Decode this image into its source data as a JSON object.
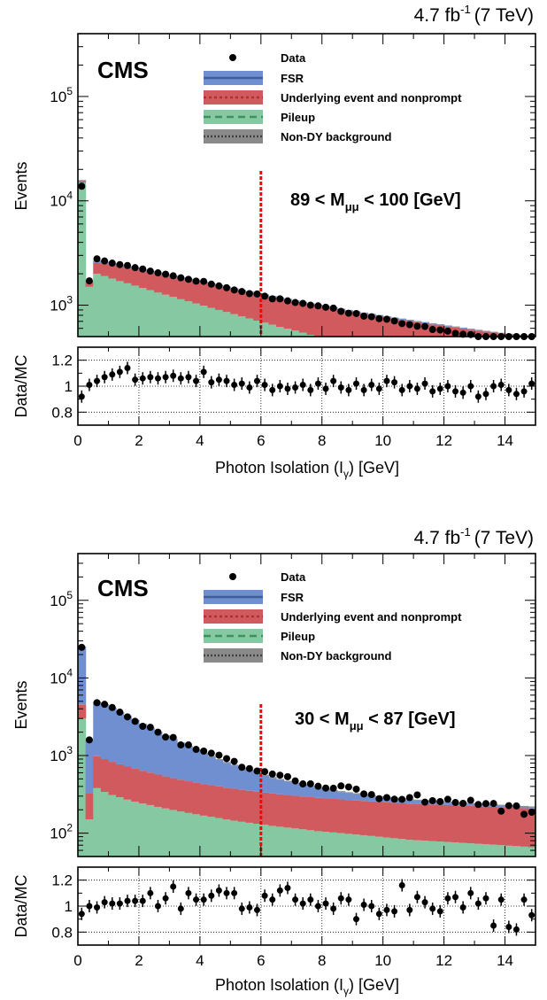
{
  "colors": {
    "fsr": "#6f8fd0",
    "ue": "#d05a5e",
    "pileup": "#86c8a1",
    "nondy": "#8a8a8a",
    "cut_line": "#ff0000",
    "data": "#000000"
  },
  "legend": {
    "data": "Data",
    "fsr": "FSR",
    "ue": "Underlying event and nonprompt",
    "pileup": "Pileup",
    "nondy": "Non-DY background"
  },
  "lumi_label": "4.7 fb",
  "lumi_exp": "-1",
  "energy_label": "(7 TeV)",
  "experiment": "CMS",
  "axes": {
    "ylabel_main": "Events",
    "ylabel_ratio": "Data/MC",
    "xlabel_main": "Photon Isolation (I",
    "xlabel_sub": "γ",
    "xlabel_unit": ") [GeV]",
    "ratio_ticks": [
      "1.2",
      "1",
      "0.8"
    ],
    "x_ticks": [
      "0",
      "2",
      "4",
      "6",
      "8",
      "10",
      "12",
      "14"
    ],
    "y_base": "10",
    "y_exponents": [
      "2",
      "3",
      "4",
      "5"
    ]
  },
  "chart_data": [
    {
      "type": "histogram-stacked",
      "mass_pre": "89 < M",
      "mass_sub": "μμ",
      "mass_post": " < 100 [GeV]",
      "xlim": [
        0,
        15
      ],
      "ylim": [
        500,
        400000
      ],
      "ylog": true,
      "ratio_ylim": [
        0.7,
        1.3
      ],
      "cut_x": 6,
      "bin_width": 0.25,
      "series": {
        "pileup": [
          15000,
          1500,
          2000,
          1900,
          1800,
          1700,
          1620,
          1540,
          1460,
          1390,
          1320,
          1260,
          1200,
          1140,
          1090,
          1040,
          990,
          940,
          900,
          860,
          820,
          780,
          745,
          710,
          680,
          650,
          620,
          595,
          570,
          545,
          520,
          498,
          477,
          457,
          438,
          420,
          403,
          387,
          372,
          358,
          344,
          331,
          319,
          307,
          296,
          286,
          276,
          267,
          258,
          250,
          242,
          234,
          227,
          220,
          213,
          207,
          201,
          195,
          189,
          184
        ],
        "ue": [
          500,
          150,
          550,
          600,
          620,
          640,
          650,
          660,
          660,
          660,
          660,
          655,
          650,
          645,
          640,
          635,
          625,
          615,
          605,
          595,
          585,
          575,
          565,
          555,
          545,
          535,
          525,
          515,
          505,
          495,
          487,
          479,
          471,
          463,
          456,
          449,
          442,
          435,
          428,
          421,
          414,
          408,
          402,
          396,
          390,
          384,
          378,
          372,
          366,
          360,
          354,
          348,
          343,
          338,
          333,
          328,
          323,
          318,
          313,
          308
        ],
        "fsr": [
          300,
          50,
          110,
          100,
          90,
          85,
          80,
          76,
          72,
          68,
          64,
          61,
          58,
          55,
          52,
          50,
          48,
          46,
          44,
          42,
          40,
          38,
          37,
          36,
          35,
          34,
          33,
          32,
          31,
          30,
          29,
          28,
          27,
          26,
          25,
          24,
          23,
          22,
          21,
          20,
          19,
          18,
          17,
          16,
          15,
          14,
          13,
          12,
          11,
          10,
          9,
          8,
          7,
          6,
          5,
          4,
          3,
          2,
          2,
          1
        ],
        "nondy": [
          30,
          5,
          15,
          15,
          14,
          14,
          13,
          13,
          12,
          12,
          12,
          11,
          11,
          11,
          10,
          10,
          10,
          10,
          9,
          9,
          9,
          9,
          9,
          8,
          8,
          8,
          8,
          8,
          7,
          7,
          7,
          7,
          7,
          7,
          7,
          6,
          6,
          6,
          6,
          6,
          6,
          6,
          6,
          6,
          5,
          5,
          5,
          5,
          5,
          5,
          5,
          5,
          5,
          5,
          5,
          5,
          5,
          5,
          5,
          5
        ],
        "ratio": [
          0.92,
          1.01,
          1.04,
          1.07,
          1.09,
          1.11,
          1.14,
          1.05,
          1.06,
          1.07,
          1.06,
          1.07,
          1.08,
          1.06,
          1.07,
          1.04,
          1.11,
          1.03,
          1.05,
          1.04,
          1.01,
          1.02,
          0.99,
          1.04,
          1.01,
          0.97,
          1.0,
          0.98,
          0.99,
          1.01,
          0.97,
          1.02,
          0.98,
          1.04,
          0.99,
          0.97,
          1.02,
          0.97,
          1.01,
          0.98,
          1.04,
          1.03,
          0.97,
          1.0,
          0.98,
          1.02,
          0.96,
          0.98,
          1.0,
          0.96,
          0.95,
          1.0,
          0.92,
          0.94,
          1.0,
          1.01,
          0.97,
          0.94,
          0.96,
          1.02
        ],
        "data": [
          13800,
          1710,
          2780,
          2650,
          2530,
          2450,
          2400,
          2290,
          2220,
          2120,
          2040,
          1980,
          1910,
          1830,
          1770,
          1700,
          1690,
          1590,
          1530,
          1470,
          1400,
          1350,
          1290,
          1280,
          1220,
          1150,
          1150,
          1100,
          1060,
          1040,
          1000,
          985,
          956,
          937,
          873,
          838,
          832,
          785,
          775,
          743,
          733,
          706,
          666,
          651,
          629,
          625,
          584,
          578,
          564,
          537,
          526,
          523,
          485,
          481,
          473,
          465,
          447,
          427,
          412,
          412
        ]
      }
    },
    {
      "type": "histogram-stacked",
      "mass_pre": "30 < M",
      "mass_sub": "μμ",
      "mass_post": " < 87 [GeV]",
      "xlim": [
        0,
        15
      ],
      "ylim": [
        50,
        400000
      ],
      "ylog": true,
      "ratio_ylim": [
        0.7,
        1.3
      ],
      "cut_x": 6,
      "bin_width": 0.25,
      "series": {
        "pileup": [
          3000,
          150,
          380,
          340,
          310,
          290,
          270,
          255,
          242,
          230,
          218,
          208,
          199,
          190,
          182,
          175,
          168,
          162,
          156,
          150,
          145,
          140,
          136,
          132,
          128,
          124,
          121,
          118,
          115,
          112,
          109,
          106,
          104,
          102,
          100,
          98,
          96,
          94,
          92,
          90,
          88,
          86,
          84,
          82,
          81,
          80,
          79,
          78,
          77,
          76,
          75,
          74,
          73,
          72,
          71,
          70,
          69,
          68,
          67,
          66
        ],
        "ue": [
          1500,
          180,
          600,
          560,
          520,
          480,
          450,
          420,
          395,
          372,
          350,
          330,
          314,
          298,
          284,
          272,
          262,
          252,
          244,
          236,
          229,
          222,
          216,
          210,
          205,
          200,
          196,
          192,
          188,
          185,
          182,
          179,
          176,
          174,
          172,
          170,
          168,
          166,
          164,
          162,
          161,
          160,
          159,
          158,
          157,
          156,
          155,
          154,
          153,
          152,
          151,
          150,
          149,
          148,
          147,
          146,
          145,
          144,
          143,
          142
        ],
        "fsr": [
          20000,
          1200,
          3800,
          3600,
          3200,
          2800,
          2450,
          2150,
          1880,
          1640,
          1430,
          1250,
          1090,
          950,
          830,
          720,
          630,
          550,
          480,
          420,
          368,
          322,
          282,
          248,
          218,
          192,
          170,
          150,
          133,
          118,
          105,
          94,
          84,
          75,
          67,
          60,
          54,
          49,
          44,
          40,
          36,
          33,
          30,
          27,
          25,
          23,
          21,
          19,
          17,
          16,
          15,
          14,
          13,
          12,
          11,
          10,
          9,
          8,
          8,
          7
        ],
        "nondy": [
          800,
          60,
          100,
          90,
          80,
          72,
          65,
          58,
          52,
          47,
          42,
          38,
          34,
          31,
          28,
          26,
          24,
          22,
          20,
          19,
          18,
          17,
          16,
          15,
          14,
          13,
          12,
          12,
          11,
          11,
          10,
          10,
          10,
          9,
          9,
          9,
          9,
          8,
          8,
          8,
          8,
          8,
          7,
          7,
          7,
          7,
          7,
          7,
          7,
          6,
          6,
          6,
          6,
          6,
          6,
          6,
          6,
          6,
          6,
          6
        ],
        "ratio": [
          0.94,
          1.0,
          0.99,
          1.03,
          1.02,
          1.02,
          1.04,
          1.04,
          1.04,
          1.1,
          1.0,
          1.06,
          1.15,
          0.98,
          1.1,
          1.05,
          1.05,
          1.08,
          1.12,
          1.1,
          1.1,
          0.98,
          0.99,
          0.97,
          1.08,
          1.05,
          1.12,
          1.14,
          1.05,
          1.02,
          1.05,
          1.0,
          1.02,
          0.98,
          1.06,
          1.05,
          0.9,
          1.01,
          1.0,
          0.94,
          0.97,
          0.96,
          1.16,
          0.97,
          1.07,
          1.03,
          0.98,
          0.96,
          1.06,
          1.07,
          0.99,
          1.1,
          1.02,
          1.06,
          0.85,
          1.05,
          0.84,
          0.82,
          1.05,
          0.93
        ],
        "data": [
          24800,
          1590,
          4790,
          4570,
          4160,
          3620,
          3150,
          2760,
          2380,
          2310,
          2000,
          1730,
          1710,
          1370,
          1370,
          1200,
          1140,
          1070,
          1010,
          913,
          840,
          706,
          679,
          632,
          620,
          577,
          558,
          534,
          471,
          431,
          432,
          402,
          381,
          379,
          406,
          394,
          369,
          320,
          314,
          278,
          287,
          274,
          272,
          287,
          311,
          251,
          262,
          255,
          273,
          248,
          242,
          265,
          234,
          240,
          241,
          192,
          226,
          224,
          175,
          186
        ]
      }
    }
  ]
}
